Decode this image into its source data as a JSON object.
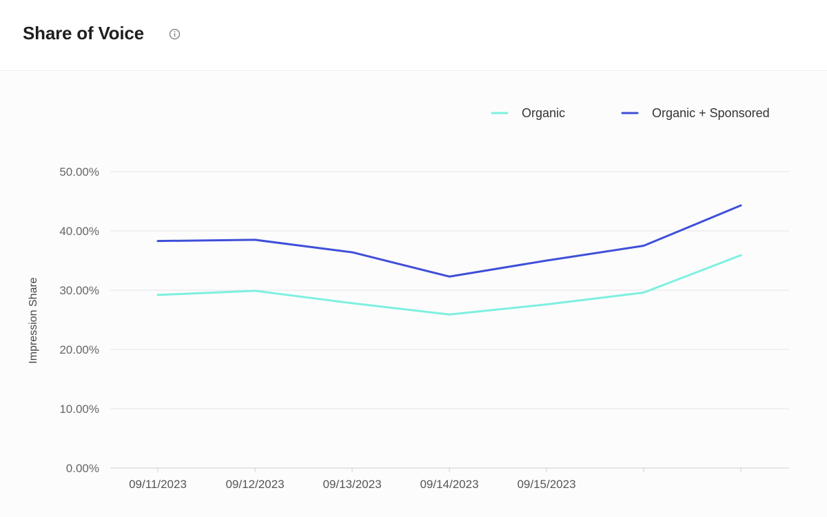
{
  "header": {
    "title": "Share of Voice",
    "info_icon": "info-icon"
  },
  "colors": {
    "organic": "#7ef0df",
    "organic_sponsored": "#3f4fd8",
    "grid": "#e3e3e8",
    "axis_text": "#666666"
  },
  "chart_data": {
    "type": "line",
    "ylabel": "Impression Share",
    "xlabel": "",
    "ylim": [
      0,
      50
    ],
    "y_ticks": [
      0,
      10,
      20,
      30,
      40,
      50
    ],
    "y_tick_labels": [
      "0.00%",
      "10.00%",
      "20.00%",
      "30.00%",
      "40.00%",
      "50.00%"
    ],
    "x_tick_labels": [
      "09/11/2023",
      "09/12/2023",
      "09/13/2023",
      "09/14/2023",
      "09/15/2023"
    ],
    "point_count": 7,
    "grid": true,
    "legend_position": "top-right",
    "series": [
      {
        "name": "Organic",
        "color": "#7ef0df",
        "values": [
          29.2,
          29.9,
          27.8,
          25.9,
          27.6,
          29.6,
          35.9
        ]
      },
      {
        "name": "Organic + Sponsored",
        "color": "#3f4fd8",
        "values": [
          38.3,
          38.5,
          36.4,
          32.3,
          35.0,
          37.5,
          44.3
        ]
      }
    ]
  }
}
